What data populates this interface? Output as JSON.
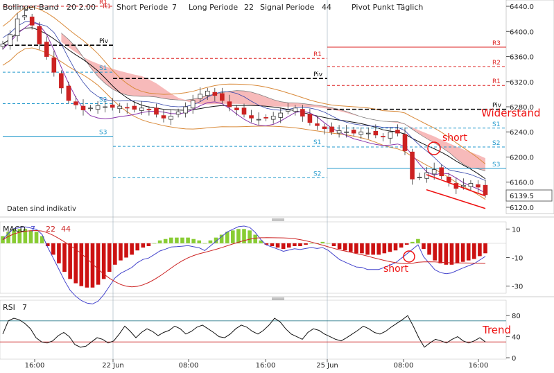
{
  "header": {
    "bollinger": "Bollinger Band",
    "bollinger_params": "20  2.00",
    "short_periode": "Short Periode",
    "short_value": "7",
    "long_periode": "Long Periode",
    "long_value": "22",
    "signal_periode": "Signal Periode",
    "signal_value": "44",
    "pivot": "Pivot Punkt  Täglich"
  },
  "disclaimer": "Daten sind indikativ",
  "current_price": "6139.5",
  "macd_header": {
    "name": "MACD",
    "p1": "7",
    "p2": "22",
    "p3": "44"
  },
  "rsi_header": {
    "name": "RSI",
    "p": "7"
  },
  "pivot_labels": {
    "day1": [
      "R1",
      "Piv",
      "S1",
      "S2",
      "S3"
    ],
    "day2": [
      "R1",
      "Piv",
      "S1",
      "S2"
    ],
    "day3": [
      "R3",
      "R2",
      "R1",
      "Piv",
      "S1",
      "S2",
      "S3"
    ]
  },
  "annotations": {
    "widerstand": "Widerstand",
    "short1": "short",
    "short2": "short",
    "trend": "Trend"
  },
  "colors": {
    "candle_up": "#333333",
    "candle_down": "#cc2222",
    "bollinger": "#d98a3a",
    "ichimoku_cloud_bear": "#f4a3a3",
    "ichimoku_cloud_bull": "#9ec3d9",
    "pivot_resist": "#dd2222",
    "pivot_support": "#2299cc",
    "pivot_main": "#000000",
    "macd_pos": "#88cc33",
    "macd_neg": "#cc1111",
    "macd_line": "#4444cc",
    "signal_line": "#cc2222",
    "rsi_line": "#111111",
    "trend_channel": "#ee1111",
    "purple_line": "#8833aa"
  },
  "chart_data": [
    {
      "type": "line",
      "title": "",
      "ylabel": "",
      "ylim": [
        6110,
        6450
      ],
      "y_ticks": [
        6120.0,
        6160.0,
        6200.0,
        6240.0,
        6280.0,
        6320.0,
        6360.0,
        6400.0,
        6440.0
      ],
      "x_tick_labels": [
        "16:00",
        "22 Jun",
        "08:00",
        "16:00",
        "25 Jun",
        "08:00",
        "16:00"
      ],
      "series": [
        {
          "values": [
            6380,
            6395,
            6420,
            6425,
            6410,
            6380,
            6360,
            6335,
            6310,
            6290,
            6283,
            6275,
            6278,
            6282,
            6280,
            6279,
            6281,
            6278,
            6276,
            6278,
            6275,
            6268,
            6262,
            6265,
            6272,
            6280,
            6290,
            6300,
            6305,
            6298,
            6290,
            6280,
            6275,
            6268,
            6262,
            6260,
            6262,
            6265,
            6270,
            6275,
            6278,
            6265,
            6255,
            6250,
            6245,
            6240,
            6242,
            6240,
            6238,
            6240,
            6238,
            6235,
            6232,
            6240,
            6238,
            6210,
            6165,
            6168,
            6175,
            6180,
            6170,
            6160,
            6150,
            6155,
            6158,
            6152,
            6140
          ]
        }
      ],
      "pivot_levels": {
        "day1": {
          "R1": 6440,
          "Piv": 6378,
          "S1": 6335,
          "S2": 6285,
          "S3": 6233
        },
        "day2": {
          "R1": 6357,
          "Piv": 6325,
          "S1": 6217,
          "S2": 6167
        },
        "day3": {
          "R3": 6375,
          "R2": 6344,
          "R1": 6314,
          "Piv": 6276,
          "S1": 6246,
          "S2": 6216,
          "S3": 6182
        }
      }
    },
    {
      "type": "bar",
      "title": "MACD",
      "ylim": [
        -35,
        15
      ],
      "y_ticks": [
        10,
        -10,
        -30
      ],
      "values": [
        5,
        8,
        10,
        10,
        10,
        9,
        8,
        5,
        -2,
        -8,
        -14,
        -20,
        -25,
        -28,
        -30,
        -31,
        -31,
        -29,
        -25,
        -20,
        -15,
        -12,
        -10,
        -8,
        -5,
        -3,
        -2,
        0,
        2,
        3,
        4,
        4,
        4,
        4,
        3,
        2,
        0,
        2,
        4,
        6,
        8,
        9,
        10,
        10,
        9,
        6,
        2,
        -1,
        -2,
        -3,
        -4,
        -3,
        -2,
        -2,
        -1,
        0,
        0,
        1,
        0,
        -2,
        -4,
        -5,
        -6,
        -7,
        -7,
        -8,
        -8,
        -8,
        -7,
        -6,
        -5,
        -3,
        -1,
        1,
        3,
        -4,
        -8,
        -12,
        -14,
        -15,
        -15,
        -14,
        -13,
        -12,
        -11,
        -9,
        -7
      ]
    },
    {
      "type": "line",
      "title": "RSI",
      "ylim": [
        0,
        100
      ],
      "y_ticks": [
        80,
        40,
        0
      ],
      "values": [
        45,
        70,
        75,
        72,
        65,
        55,
        38,
        30,
        28,
        32,
        42,
        48,
        40,
        25,
        20,
        22,
        30,
        38,
        35,
        28,
        32,
        45,
        60,
        50,
        38,
        48,
        55,
        50,
        42,
        48,
        52,
        60,
        55,
        45,
        50,
        58,
        62,
        55,
        48,
        40,
        38,
        45,
        55,
        62,
        58,
        50,
        45,
        52,
        62,
        75,
        68,
        55,
        45,
        40,
        35,
        48,
        55,
        52,
        45,
        40,
        35,
        32,
        38,
        45,
        52,
        60,
        55,
        48,
        45,
        50,
        58,
        65,
        72,
        80,
        60,
        38,
        20,
        28,
        35,
        32,
        28,
        35,
        40,
        32,
        28,
        32,
        38,
        30
      ]
    }
  ]
}
